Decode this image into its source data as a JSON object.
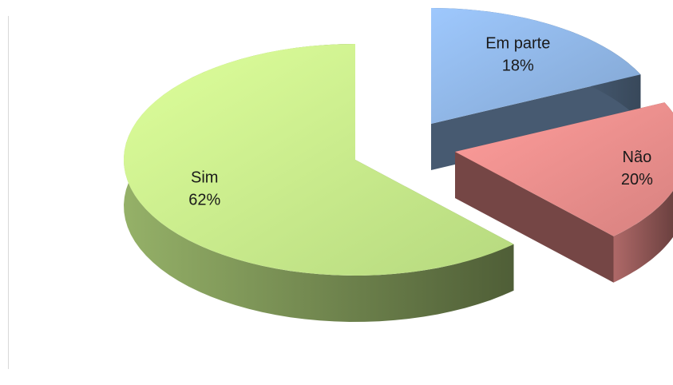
{
  "chart_data": {
    "type": "pie",
    "categories": [
      "Em parte",
      "Não",
      "Sim"
    ],
    "values": [
      18,
      20,
      62
    ],
    "value_labels": [
      "18%",
      "20%",
      "62%"
    ],
    "colors": [
      "#8db3e2",
      "#e98c8a",
      "#c6ec8a"
    ]
  }
}
